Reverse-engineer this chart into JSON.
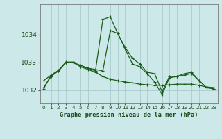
{
  "title": "Graphe pression niveau de la mer (hPa)",
  "bg_color": "#cce8e8",
  "grid_color": "#aacccc",
  "line_color": "#1a5c1a",
  "xlim": [
    -0.5,
    23.5
  ],
  "ylim": [
    1031.55,
    1035.1
  ],
  "yticks": [
    1032,
    1033,
    1034
  ],
  "xtick_labels": [
    "0",
    "1",
    "2",
    "3",
    "4",
    "5",
    "6",
    "7",
    "8",
    "9",
    "10",
    "11",
    "12",
    "13",
    "14",
    "15",
    "16",
    "17",
    "18",
    "19",
    "20",
    "21",
    "22",
    "23"
  ],
  "series1_x": [
    0,
    1,
    2,
    3,
    4,
    5,
    6,
    7,
    8,
    9,
    10,
    11,
    12,
    13,
    14,
    15,
    16,
    17,
    18,
    19,
    20,
    21,
    22,
    23
  ],
  "series1_y": [
    1032.05,
    1032.55,
    1032.7,
    1033.0,
    1033.0,
    1032.85,
    1032.8,
    1032.75,
    1032.7,
    1034.15,
    1034.05,
    1033.55,
    1033.15,
    1032.95,
    1032.65,
    1032.6,
    1031.95,
    1032.5,
    1032.5,
    1032.55,
    1032.6,
    1032.35,
    1032.1,
    1032.05
  ],
  "series2_x": [
    0,
    1,
    2,
    3,
    4,
    5,
    6,
    7,
    8,
    9,
    10,
    11,
    12,
    13,
    14,
    15,
    16,
    17,
    18,
    19,
    20,
    21,
    22,
    23
  ],
  "series2_y": [
    1032.1,
    1032.5,
    1032.7,
    1033.0,
    1033.0,
    1032.9,
    1032.8,
    1032.7,
    1034.55,
    1034.65,
    1034.05,
    1033.5,
    1032.95,
    1032.85,
    1032.6,
    1032.3,
    1031.85,
    1032.45,
    1032.5,
    1032.6,
    1032.65,
    1032.35,
    1032.1,
    1032.05
  ],
  "series3_x": [
    0,
    1,
    2,
    3,
    4,
    5,
    6,
    7,
    8,
    9,
    10,
    11,
    12,
    13,
    14,
    15,
    16,
    17,
    18,
    19,
    20,
    21,
    22,
    23
  ],
  "series3_y": [
    1032.35,
    1032.55,
    1032.72,
    1033.02,
    1033.02,
    1032.85,
    1032.75,
    1032.65,
    1032.5,
    1032.4,
    1032.35,
    1032.3,
    1032.27,
    1032.22,
    1032.2,
    1032.18,
    1032.18,
    1032.2,
    1032.22,
    1032.22,
    1032.22,
    1032.18,
    1032.12,
    1032.1
  ]
}
